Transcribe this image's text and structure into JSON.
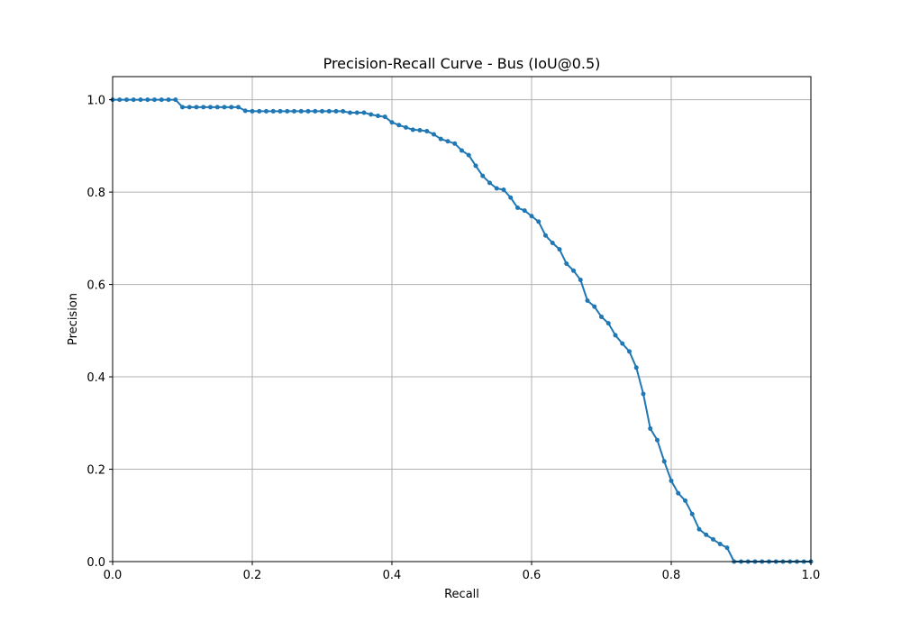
{
  "chart_data": {
    "type": "line",
    "title": "Precision-Recall Curve - Bus (IoU@0.5)",
    "xlabel": "Recall",
    "ylabel": "Precision",
    "xlim": [
      0,
      1
    ],
    "ylim": [
      0,
      1.05
    ],
    "grid": true,
    "x_ticks": [
      "0.0",
      "0.2",
      "0.4",
      "0.6",
      "0.8",
      "1.0"
    ],
    "y_ticks": [
      "0.0",
      "0.2",
      "0.4",
      "0.6",
      "0.8",
      "1.0"
    ],
    "colors": {
      "series": "#1f77b4",
      "grid": "#b0b0b0",
      "axis": "#000000"
    },
    "series": [
      {
        "marker": "circle",
        "x": [
          0.0,
          0.01,
          0.02,
          0.03,
          0.04,
          0.05,
          0.06,
          0.07,
          0.08,
          0.09,
          0.1,
          0.11,
          0.12,
          0.13,
          0.14,
          0.15,
          0.16,
          0.17,
          0.18,
          0.19,
          0.2,
          0.21,
          0.22,
          0.23,
          0.24,
          0.25,
          0.26,
          0.27,
          0.28,
          0.29,
          0.3,
          0.31,
          0.32,
          0.33,
          0.34,
          0.35,
          0.36,
          0.37,
          0.38,
          0.39,
          0.4,
          0.41,
          0.42,
          0.43,
          0.44,
          0.45,
          0.46,
          0.47,
          0.48,
          0.49,
          0.5,
          0.51,
          0.52,
          0.53,
          0.54,
          0.55,
          0.56,
          0.57,
          0.58,
          0.59,
          0.6,
          0.61,
          0.62,
          0.63,
          0.64,
          0.65,
          0.66,
          0.67,
          0.68,
          0.69,
          0.7,
          0.71,
          0.72,
          0.73,
          0.74,
          0.75,
          0.76,
          0.77,
          0.78,
          0.79,
          0.8,
          0.81,
          0.82,
          0.83,
          0.84,
          0.85,
          0.86,
          0.87,
          0.88,
          0.89,
          0.9,
          0.91,
          0.92,
          0.93,
          0.94,
          0.95,
          0.96,
          0.97,
          0.98,
          0.99,
          1.0
        ],
        "y": [
          1.0,
          1.0,
          1.0,
          1.0,
          1.0,
          1.0,
          1.0,
          1.0,
          1.0,
          1.0,
          0.984,
          0.984,
          0.984,
          0.984,
          0.984,
          0.984,
          0.984,
          0.984,
          0.984,
          0.976,
          0.975,
          0.975,
          0.975,
          0.975,
          0.975,
          0.975,
          0.975,
          0.975,
          0.975,
          0.975,
          0.975,
          0.975,
          0.975,
          0.975,
          0.972,
          0.972,
          0.972,
          0.968,
          0.965,
          0.963,
          0.951,
          0.945,
          0.94,
          0.935,
          0.934,
          0.932,
          0.925,
          0.915,
          0.91,
          0.905,
          0.89,
          0.88,
          0.857,
          0.835,
          0.82,
          0.808,
          0.805,
          0.788,
          0.766,
          0.76,
          0.748,
          0.736,
          0.706,
          0.69,
          0.676,
          0.645,
          0.63,
          0.61,
          0.565,
          0.552,
          0.53,
          0.516,
          0.49,
          0.472,
          0.455,
          0.42,
          0.363,
          0.288,
          0.263,
          0.217,
          0.175,
          0.148,
          0.132,
          0.103,
          0.07,
          0.058,
          0.048,
          0.038,
          0.03,
          0.0,
          0.0,
          0.0,
          0.0,
          0.0,
          0.0,
          0.0,
          0.0,
          0.0,
          0.0,
          0.0,
          0.0
        ]
      }
    ]
  }
}
